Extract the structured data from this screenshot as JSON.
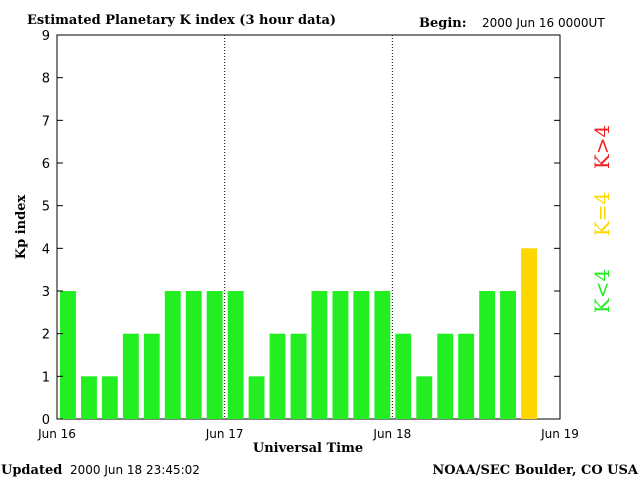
{
  "header": {
    "title": "Estimated Planetary K index (3 hour data)",
    "begin_label": "Begin:",
    "begin_value": "2000 Jun 16 0000UT"
  },
  "footer": {
    "updated_label": "Updated",
    "updated_value": "2000 Jun 18 23:45:02",
    "source": "NOAA/SEC Boulder, CO USA"
  },
  "legend": {
    "below": "K<4",
    "equal": "K=4",
    "above": "K>4"
  },
  "colors": {
    "below": "#22ee22",
    "equal": "#ffd700",
    "above": "#ee2222"
  },
  "chart_data": {
    "type": "bar",
    "title": "Estimated Planetary K index (3 hour data)",
    "xlabel": "Universal Time",
    "ylabel": "Kp index",
    "ylim": [
      0,
      9
    ],
    "yticks": [
      0,
      1,
      2,
      3,
      4,
      5,
      6,
      7,
      8,
      9
    ],
    "xticks": [
      "Jun 16",
      "Jun 17",
      "Jun 18",
      "Jun 19"
    ],
    "day_separators": [
      "Jun 17",
      "Jun 18"
    ],
    "interval_hours": 3,
    "values": [
      3,
      1,
      1,
      2,
      2,
      3,
      3,
      3,
      3,
      1,
      2,
      2,
      3,
      3,
      3,
      3,
      2,
      1,
      2,
      2,
      3,
      3,
      4
    ]
  }
}
